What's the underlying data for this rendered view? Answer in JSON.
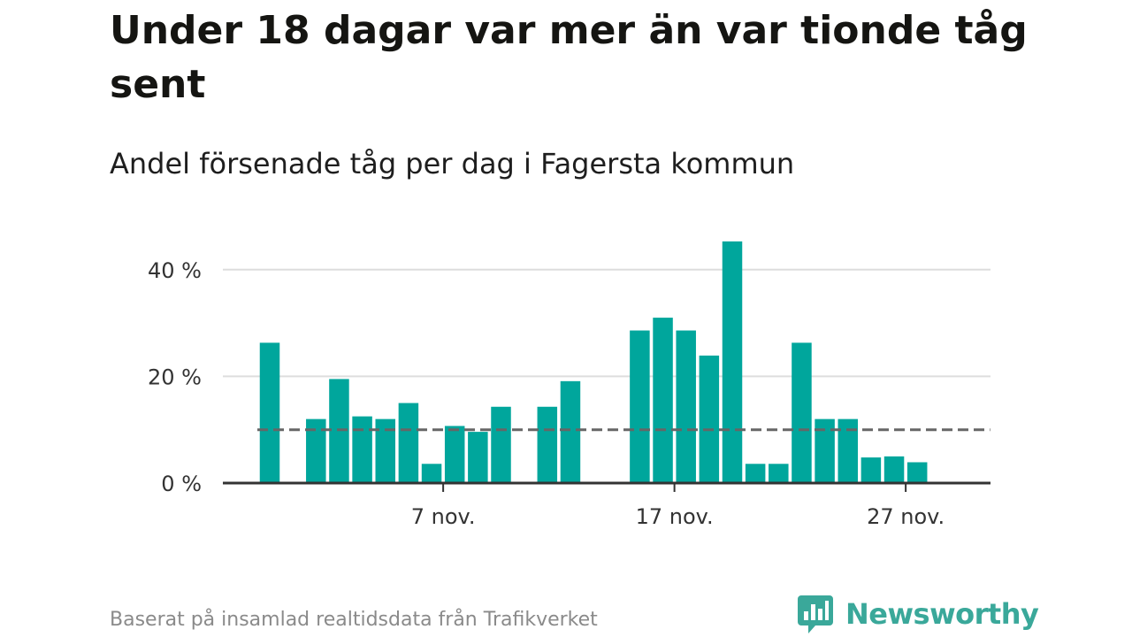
{
  "header": {
    "title": "Under 18 dagar var mer än var tionde tåg sent",
    "subtitle": "Andel försenade tåg per dag i Fagersta kommun"
  },
  "footer": {
    "source": "Baserat på insamlad realtidsdata från Trafikverket",
    "logo_text": "Newsworthy",
    "logo_icon": "bar-chart-speech-bubble-icon"
  },
  "colors": {
    "bar": "#00a69c",
    "reference_line": "#666666",
    "axis": "#333333",
    "grid": "#dddddd",
    "logo": "#3aa89a"
  },
  "chart_data": {
    "type": "bar",
    "title": "",
    "xlabel": "",
    "ylabel": "",
    "x_start": "2023-10-30",
    "x_end": "2023-11-30",
    "x_tick_labels": [
      {
        "date": "2023-11-07",
        "label": "7 nov."
      },
      {
        "date": "2023-11-17",
        "label": "17 nov."
      },
      {
        "date": "2023-11-27",
        "label": "27 nov."
      }
    ],
    "y_ticks": [
      {
        "value": 0,
        "label": "0 %"
      },
      {
        "value": 20,
        "label": "20 %"
      },
      {
        "value": 40,
        "label": "40 %"
      }
    ],
    "ylim": [
      0,
      45
    ],
    "grid": true,
    "reference_value": 10,
    "reference_style": "dashed",
    "series": [
      {
        "values": [
          {
            "date": "2023-10-30",
            "value": 26.3
          },
          {
            "date": "2023-11-01",
            "value": 12.0
          },
          {
            "date": "2023-11-02",
            "value": 19.5
          },
          {
            "date": "2023-11-03",
            "value": 12.5
          },
          {
            "date": "2023-11-04",
            "value": 12.0
          },
          {
            "date": "2023-11-05",
            "value": 15.0
          },
          {
            "date": "2023-11-06",
            "value": 3.6
          },
          {
            "date": "2023-11-07",
            "value": 10.7
          },
          {
            "date": "2023-11-08",
            "value": 9.6
          },
          {
            "date": "2023-11-09",
            "value": 14.3
          },
          {
            "date": "2023-11-11",
            "value": 14.3
          },
          {
            "date": "2023-11-12",
            "value": 19.1
          },
          {
            "date": "2023-11-15",
            "value": 28.6
          },
          {
            "date": "2023-11-16",
            "value": 31.0
          },
          {
            "date": "2023-11-17",
            "value": 28.6
          },
          {
            "date": "2023-11-18",
            "value": 23.9
          },
          {
            "date": "2023-11-19",
            "value": 45.3
          },
          {
            "date": "2023-11-20",
            "value": 3.6
          },
          {
            "date": "2023-11-21",
            "value": 3.6
          },
          {
            "date": "2023-11-22",
            "value": 26.3
          },
          {
            "date": "2023-11-23",
            "value": 12.0
          },
          {
            "date": "2023-11-24",
            "value": 12.0
          },
          {
            "date": "2023-11-25",
            "value": 4.8
          },
          {
            "date": "2023-11-26",
            "value": 5.0
          },
          {
            "date": "2023-11-27",
            "value": 3.9
          }
        ]
      }
    ]
  }
}
